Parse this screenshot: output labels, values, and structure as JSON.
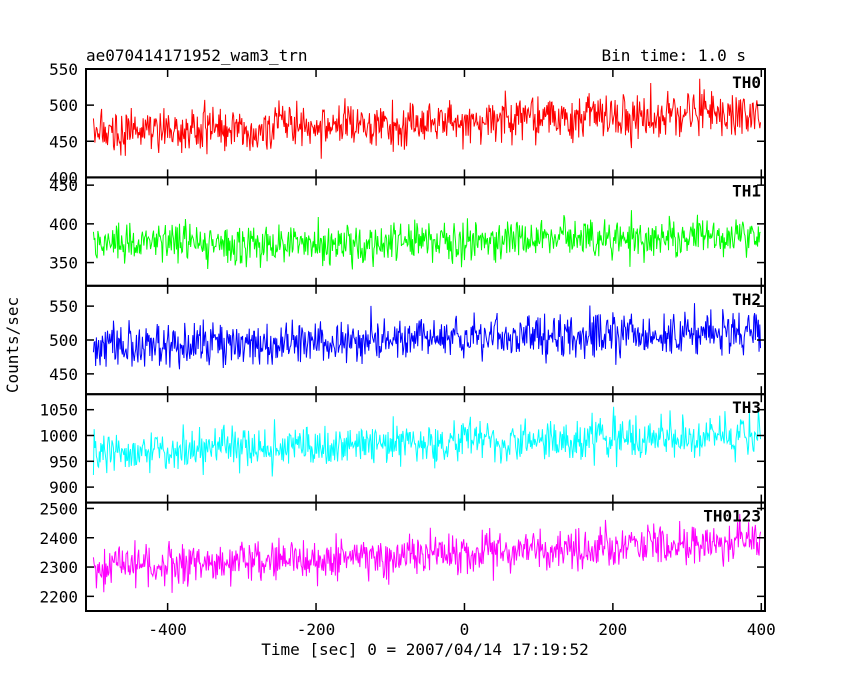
{
  "header": {
    "title": "ae070414171952_wam3_trn",
    "bin_time": "Bin time: 1.0 s"
  },
  "chart_data": {
    "type": "line",
    "xlabel": "Time [sec] 0 = 2007/04/14 17:19:52",
    "ylabel": "Counts/sec",
    "xlim": [
      -510,
      405
    ],
    "xticks": [
      -400,
      -200,
      0,
      200,
      400
    ],
    "x_start": -500,
    "x_end": 399,
    "x_step": 1,
    "grid": false,
    "panels": [
      {
        "name": "TH0",
        "color": "#ff0000",
        "ylim": [
          400,
          550
        ],
        "yticks": [
          400,
          450,
          500,
          550
        ],
        "start_mean": 462,
        "end_mean": 488,
        "noise": 28
      },
      {
        "name": "TH1",
        "color": "#00ff00",
        "ylim": [
          320,
          460
        ],
        "yticks": [
          350,
          400,
          450
        ],
        "start_mean": 375,
        "end_mean": 380,
        "noise": 22
      },
      {
        "name": "TH2",
        "color": "#0000ff",
        "ylim": [
          420,
          580
        ],
        "yticks": [
          450,
          500,
          550
        ],
        "start_mean": 492,
        "end_mean": 512,
        "noise": 28
      },
      {
        "name": "TH3",
        "color": "#00ffff",
        "ylim": [
          870,
          1080
        ],
        "yticks": [
          900,
          950,
          1000,
          1050
        ],
        "start_mean": 968,
        "end_mean": 1000,
        "noise": 34
      },
      {
        "name": "TH0123",
        "color": "#ff00ff",
        "ylim": [
          2150,
          2520
        ],
        "yticks": [
          2200,
          2300,
          2400,
          2500
        ],
        "start_mean": 2292,
        "end_mean": 2390,
        "noise": 62
      }
    ]
  }
}
